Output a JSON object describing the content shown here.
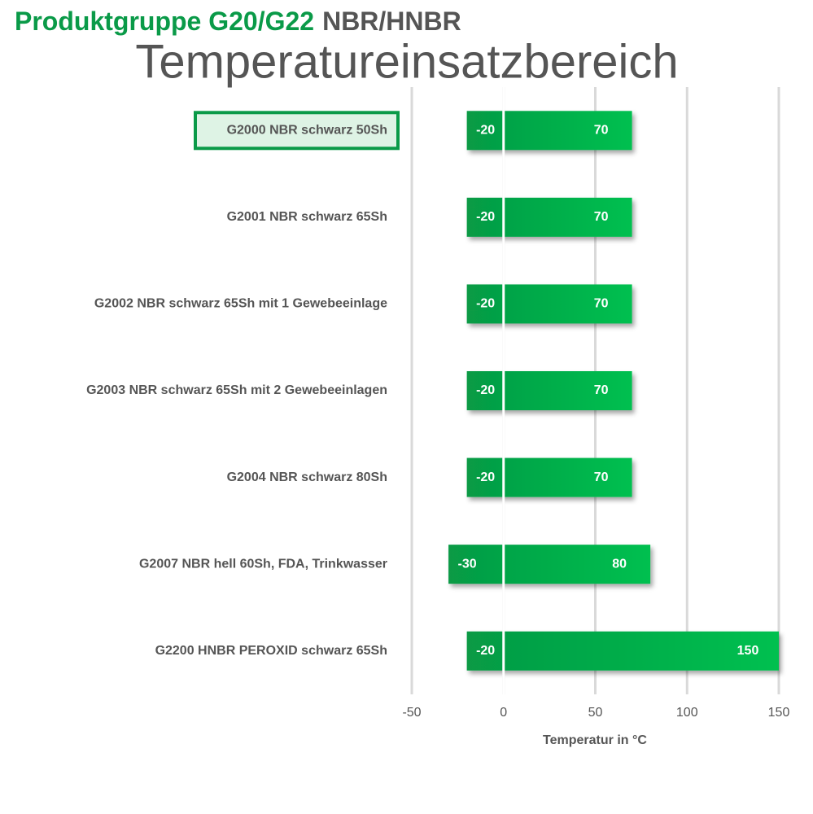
{
  "chart_data": {
    "type": "range-bar",
    "title": "Produktgruppe G20/G22",
    "title_suffix": "NBR/HNBR",
    "subtitle": "Temperatureinsatzbereich",
    "x_label": "Temperatur in °C",
    "categories": [
      "G2000 NBR schwarz 50Sh",
      "G2001 NBR schwarz 65Sh",
      "G2002 NBR schwarz 65Sh mit 1 Gewebeeinlage",
      "G2003 NBR schwarz 65Sh mit 2 Gewebeeinlagen",
      "G2004 NBR schwarz 80Sh",
      "G2007 NBR hell 60Sh, FDA, Trinkwasser",
      "G2200 HNBR PEROXID schwarz 65Sh"
    ],
    "low": [
      -20,
      -20,
      -20,
      -20,
      -20,
      -30,
      -20
    ],
    "high": [
      70,
      70,
      70,
      70,
      70,
      80,
      150
    ],
    "color": "#0fa84c",
    "highlighted": 0,
    "xlim": [
      -50,
      150
    ],
    "xticks": [
      -50,
      0,
      50,
      100,
      150
    ],
    "grid": true
  }
}
